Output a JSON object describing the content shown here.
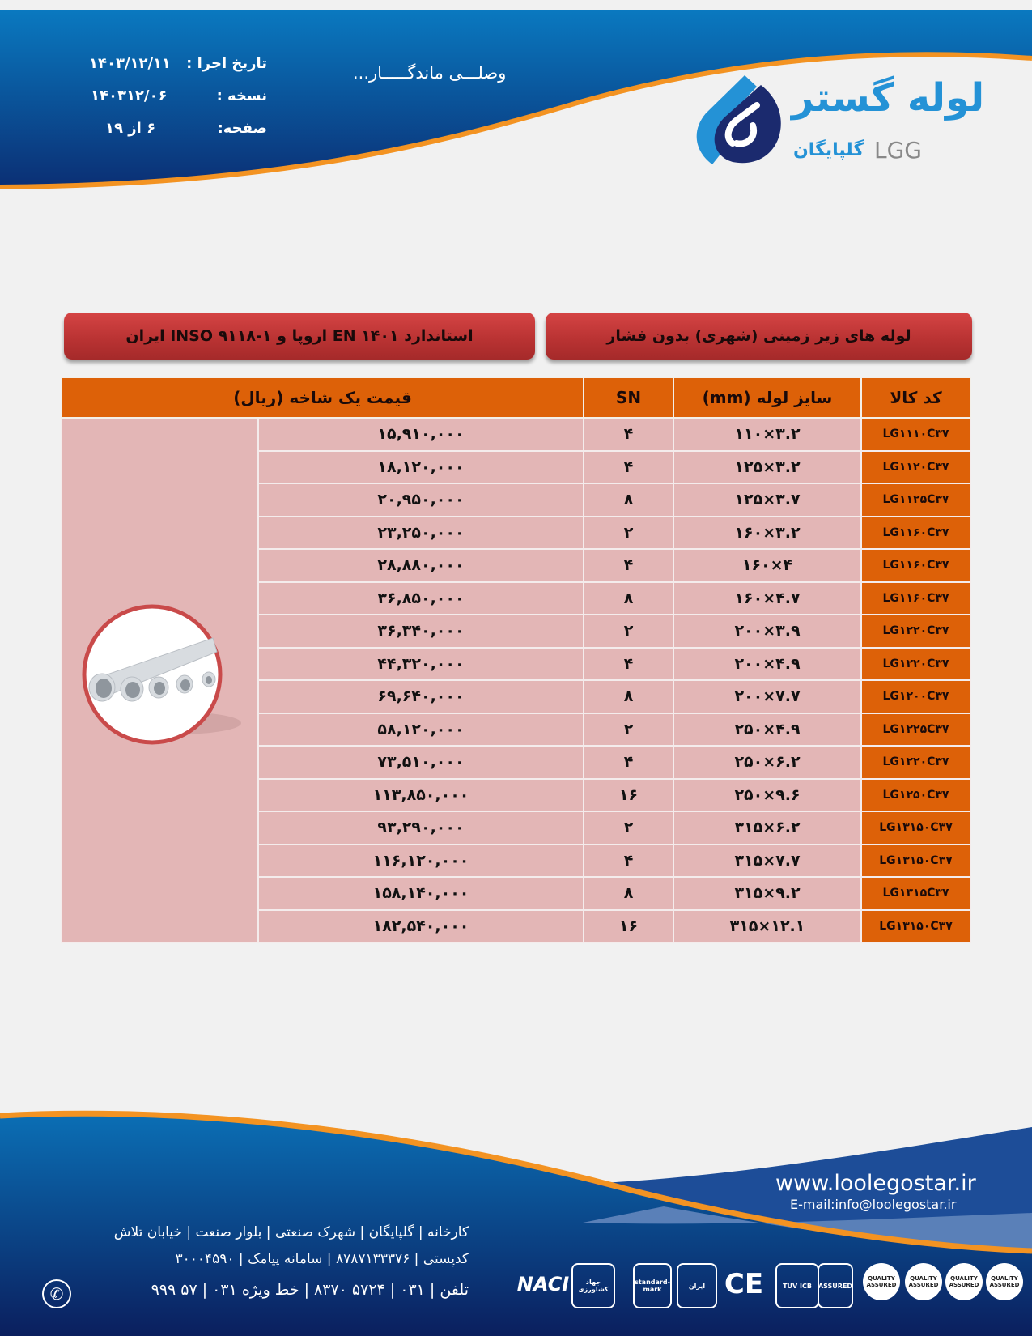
{
  "header": {
    "tagline": "وصلـــی ماندگـــــار...",
    "info": [
      {
        "label": "تاریخ اجرا :",
        "value": "۱۴۰۳/۱۲/۱۱"
      },
      {
        "label": "نسخه :",
        "value": "۱۴۰۳۱۲/۰۶"
      },
      {
        "label": "صفحه:",
        "value": "۶ از ۱۹"
      }
    ],
    "logo": {
      "name_fa": "لوله گستر",
      "city_fa": "گلپایگان",
      "abbr": "LGG"
    }
  },
  "banners": {
    "title": "لوله های  زیر زمینی (شهری) بدون فشار",
    "standard": "استاندارد EN ۱۴۰۱ اروپا و ۱-۹۱۱۸  INSO ایران"
  },
  "table": {
    "columns": {
      "code": "کد کالا",
      "size": "سایز لوله (mm)",
      "sn": "SN",
      "price": "قیمت یک شاخه (ریال)"
    },
    "rows": [
      {
        "code": "LG۱۱۱۰C۳۷",
        "size": "۱۱۰×۳.۲",
        "sn": "۴",
        "price": "۱۵,۹۱۰,۰۰۰"
      },
      {
        "code": "LG۱۱۲۰C۳۷",
        "size": "۱۲۵×۳.۲",
        "sn": "۴",
        "price": "۱۸,۱۲۰,۰۰۰"
      },
      {
        "code": "LG۱۱۲۵C۳۷",
        "size": "۱۲۵×۳.۷",
        "sn": "۸",
        "price": "۲۰,۹۵۰,۰۰۰"
      },
      {
        "code": "LG۱۱۶۰C۳۷",
        "size": "۱۶۰×۳.۲",
        "sn": "۲",
        "price": "۲۳,۲۵۰,۰۰۰"
      },
      {
        "code": "LG۱۱۶۰C۳۷",
        "size": "۱۶۰×۴",
        "sn": "۴",
        "price": "۲۸,۸۸۰,۰۰۰"
      },
      {
        "code": "LG۱۱۶۰C۳۷",
        "size": "۱۶۰×۴.۷",
        "sn": "۸",
        "price": "۳۶,۸۵۰,۰۰۰"
      },
      {
        "code": "LG۱۲۲۰C۳۷",
        "size": "۲۰۰×۳.۹",
        "sn": "۲",
        "price": "۳۶,۳۴۰,۰۰۰"
      },
      {
        "code": "LG۱۲۲۰C۳۷",
        "size": "۲۰۰×۴.۹",
        "sn": "۴",
        "price": "۴۴,۳۲۰,۰۰۰"
      },
      {
        "code": "LG۱۲۰۰C۳۷",
        "size": "۲۰۰×۷.۷",
        "sn": "۸",
        "price": "۶۹,۶۴۰,۰۰۰"
      },
      {
        "code": "LG۱۲۲۵C۳۷",
        "size": "۲۵۰×۴.۹",
        "sn": "۲",
        "price": "۵۸,۱۲۰,۰۰۰"
      },
      {
        "code": "LG۱۲۲۰C۳۷",
        "size": "۲۵۰×۶.۲",
        "sn": "۴",
        "price": "۷۳,۵۱۰,۰۰۰"
      },
      {
        "code": "LG۱۲۵۰C۳۷",
        "size": "۲۵۰×۹.۶",
        "sn": "۱۶",
        "price": "۱۱۳,۸۵۰,۰۰۰"
      },
      {
        "code": "LG۱۳۱۵۰C۳۷",
        "size": "۳۱۵×۶.۲",
        "sn": "۲",
        "price": "۹۳,۲۹۰,۰۰۰"
      },
      {
        "code": "LG۱۳۱۵۰C۳۷",
        "size": "۳۱۵×۷.۷",
        "sn": "۴",
        "price": "۱۱۶,۱۲۰,۰۰۰"
      },
      {
        "code": "LG۱۳۱۵C۳۷",
        "size": "۳۱۵×۹.۲",
        "sn": "۸",
        "price": "۱۵۸,۱۴۰,۰۰۰"
      },
      {
        "code": "LG۱۳۱۵۰C۳۷",
        "size": "۳۱۵×۱۲.۱",
        "sn": "۱۶",
        "price": "۱۸۲,۵۴۰,۰۰۰"
      }
    ]
  },
  "footer": {
    "website": "www.loolegostar.ir",
    "email": "E-mail:info@loolegostar.ir",
    "address": "کارخانه | گلپایگان | شهرک صنعتی | بلوار صنعت | خیابان تلاش",
    "postal": "کدپستی | ۸۷۸۷۱۳۳۳۷۶ | سامانه پیامک | ۳۰۰۰۴۵۹۰",
    "phone": "تلفن | ۰۳۱ | ۵۷۲۴ ۸۳۷۰ | خط ویژه  ۰۳۱ | ۵۷ ۹۹۹",
    "certifications": [
      "NACI",
      "جهاد کشاورزی",
      "standard-mark",
      "ایران",
      "CE",
      "TUV ICB",
      "ASSURED",
      "QUALITY ASSURED",
      "QUALITY ASSURED",
      "QUALITY ASSURED",
      "QUALITY ASSURED"
    ]
  },
  "colors": {
    "brand_blue": "#0b3f8c",
    "accent_orange": "#f39322",
    "table_header": "#dd6108",
    "row_fill": "#e3b6b6",
    "banner_red": "#c13838"
  }
}
